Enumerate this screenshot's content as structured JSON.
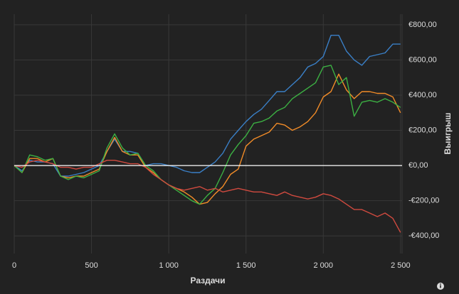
{
  "chart_data": {
    "type": "line",
    "x_label": "Раздачи",
    "y_label": "Выигрыш",
    "x": [
      0,
      50,
      100,
      150,
      200,
      250,
      300,
      350,
      400,
      450,
      500,
      550,
      600,
      650,
      700,
      750,
      800,
      850,
      900,
      950,
      1000,
      1050,
      1100,
      1150,
      1200,
      1250,
      1300,
      1350,
      1400,
      1450,
      1500,
      1550,
      1600,
      1650,
      1700,
      1750,
      1800,
      1850,
      1900,
      1950,
      2000,
      2050,
      2100,
      2150,
      2200,
      2250,
      2300,
      2350,
      2400,
      2450,
      2500
    ],
    "series": [
      {
        "color": "#3a7fc6",
        "values": [
          0,
          -30,
          30,
          20,
          20,
          10,
          -60,
          -60,
          -50,
          -40,
          -20,
          0,
          80,
          150,
          80,
          80,
          70,
          0,
          10,
          10,
          0,
          -10,
          -30,
          -40,
          -40,
          -10,
          20,
          70,
          150,
          200,
          250,
          290,
          320,
          370,
          420,
          420,
          460,
          500,
          560,
          580,
          620,
          740,
          740,
          650,
          600,
          570,
          620,
          630,
          640,
          690,
          690
        ]
      },
      {
        "color": "#f28c28",
        "values": [
          0,
          -40,
          40,
          40,
          20,
          40,
          -60,
          -70,
          -60,
          -60,
          -40,
          -20,
          80,
          160,
          80,
          60,
          60,
          -10,
          -40,
          -80,
          -110,
          -130,
          -150,
          -180,
          -220,
          -210,
          -160,
          -120,
          -50,
          -20,
          110,
          150,
          170,
          190,
          240,
          230,
          200,
          220,
          250,
          300,
          390,
          420,
          520,
          430,
          380,
          420,
          420,
          410,
          410,
          390,
          300
        ]
      },
      {
        "color": "#3cb043",
        "values": [
          0,
          -40,
          60,
          50,
          30,
          40,
          -60,
          -80,
          -60,
          -70,
          -50,
          -30,
          100,
          180,
          100,
          60,
          70,
          0,
          -30,
          -80,
          -110,
          -140,
          -170,
          -200,
          -220,
          -170,
          -130,
          -40,
          60,
          120,
          170,
          240,
          250,
          270,
          310,
          330,
          380,
          410,
          440,
          470,
          560,
          570,
          460,
          500,
          280,
          360,
          370,
          360,
          380,
          360,
          330
        ]
      },
      {
        "color": "#d04a3f",
        "values": [
          0,
          -10,
          20,
          30,
          20,
          10,
          -10,
          -10,
          -20,
          -10,
          -10,
          10,
          30,
          30,
          20,
          10,
          10,
          -10,
          -50,
          -80,
          -110,
          -130,
          -140,
          -130,
          -120,
          -140,
          -130,
          -150,
          -140,
          -130,
          -140,
          -150,
          -150,
          -160,
          -170,
          -150,
          -170,
          -180,
          -190,
          -180,
          -160,
          -170,
          -190,
          -220,
          -250,
          -250,
          -270,
          -290,
          -270,
          -300,
          -380
        ]
      }
    ],
    "xlim": [
      0,
      2510
    ],
    "ylim": [
      -500,
      860
    ],
    "xticks": [
      0,
      500,
      {
        "value": 1000,
        "label": "1 000"
      },
      {
        "value": 1500,
        "label": "1 500"
      },
      {
        "value": 2000,
        "label": "2 000"
      },
      {
        "value": 2500,
        "label": "2 500"
      }
    ],
    "yticks": [
      {
        "value": -400,
        "label": "-€400,00"
      },
      {
        "value": -200,
        "label": "-€200,00"
      },
      {
        "value": 0,
        "label": "€0,00"
      },
      {
        "value": 200,
        "label": "€200,00"
      },
      {
        "value": 400,
        "label": "€400,00"
      },
      {
        "value": 600,
        "label": "€600,00"
      },
      {
        "value": 800,
        "label": "€800,00"
      }
    ],
    "grid": true
  }
}
